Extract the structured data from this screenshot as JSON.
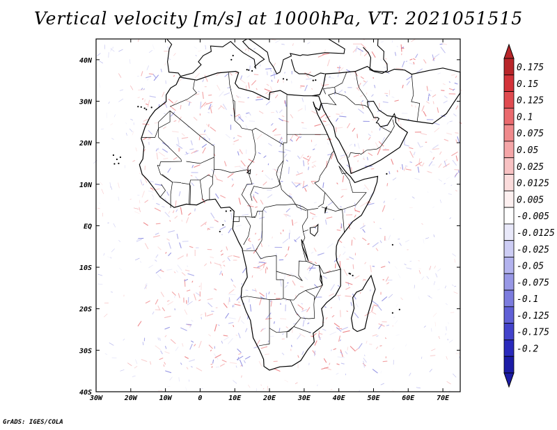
{
  "title": "Vertical velocity [m/s] at 1000hPa, VT: 2021051515",
  "footer": "GrADS: IGES/COLA",
  "map": {
    "projection": "latlon",
    "lon_range": [
      -30,
      75
    ],
    "lat_range": [
      -40,
      45
    ],
    "lon_ticks": [
      {
        "value": -30,
        "label": "30W"
      },
      {
        "value": -20,
        "label": "20W"
      },
      {
        "value": -10,
        "label": "10W"
      },
      {
        "value": 0,
        "label": "0"
      },
      {
        "value": 10,
        "label": "10E"
      },
      {
        "value": 20,
        "label": "20E"
      },
      {
        "value": 30,
        "label": "30E"
      },
      {
        "value": 40,
        "label": "40E"
      },
      {
        "value": 50,
        "label": "50E"
      },
      {
        "value": 60,
        "label": "60E"
      },
      {
        "value": 70,
        "label": "70E"
      }
    ],
    "lat_ticks": [
      {
        "value": 40,
        "label": "40N"
      },
      {
        "value": 30,
        "label": "30N"
      },
      {
        "value": 20,
        "label": "20N"
      },
      {
        "value": 10,
        "label": "10N"
      },
      {
        "value": 0,
        "label": "EQ"
      },
      {
        "value": -10,
        "label": "10S"
      },
      {
        "value": -20,
        "label": "20S"
      },
      {
        "value": -30,
        "label": "30S"
      },
      {
        "value": -40,
        "label": "40S"
      }
    ],
    "field": "Vertical velocity",
    "units": "m/s",
    "level": "1000hPa",
    "valid_time": "2021051515"
  },
  "colorbar": {
    "levels": [
      "0.175",
      "0.15",
      "0.125",
      "0.1",
      "0.075",
      "0.05",
      "0.025",
      "0.0125",
      "0.005",
      "-0.005",
      "-0.0125",
      "-0.025",
      "-0.05",
      "-0.075",
      "-0.1",
      "-0.125",
      "-0.175",
      "-0.2"
    ],
    "colors": [
      "#b8262a",
      "#d3333a",
      "#e04b50",
      "#ea6a6e",
      "#f08a8c",
      "#f5a6a8",
      "#f8c2c3",
      "#fbdcdc",
      "#fdf0f0",
      "#ffffff",
      "#e9e9fa",
      "#cdcdf4",
      "#b3b3ee",
      "#9898e6",
      "#7c7cde",
      "#6060d6",
      "#4343cb",
      "#2a2abc",
      "#1c1ca6"
    ]
  },
  "colors": {
    "positive": "#e05a5e",
    "negative": "#5858d8",
    "coastline": "#000000"
  }
}
